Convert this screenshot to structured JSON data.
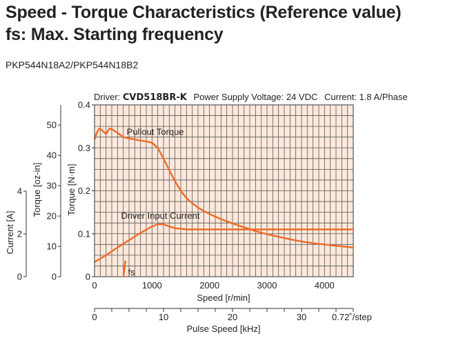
{
  "header": {
    "title_line1": "Speed - Torque Characteristics (Reference value)",
    "title_line2": "fs: Max. Starting frequency",
    "model": "PKP544N18A2/PKP544N18B2"
  },
  "conditions": {
    "driver_prefix": "Driver: ",
    "driver_name": "CVD518BR-K",
    "power_supply": "Power Supply Voltage: 24 VDC",
    "current": "Current: 1.8 A/Phase"
  },
  "colors": {
    "curve": "#ef6a24",
    "plot_background": "#fde9dc",
    "grid": "#555555"
  },
  "chart_data": {
    "type": "line",
    "x_axis": {
      "label": "Speed [r/min]",
      "range": [
        0,
        4500
      ],
      "ticks": [
        0,
        1000,
        2000,
        3000,
        4000
      ],
      "minor_step": 100
    },
    "pulse_axis": {
      "label": "Pulse Speed [kHz]",
      "range": [
        0,
        37.5
      ],
      "ticks": [
        0,
        10,
        20,
        30
      ],
      "end_label": "0.72˚/step"
    },
    "y_axis_torque_nm": {
      "label": "Torque [N·m]",
      "range": [
        0,
        0.4
      ],
      "ticks": [
        0,
        0.1,
        0.2,
        0.3,
        0.4
      ]
    },
    "y_axis_torque_ozin": {
      "label": "Torque [oz-in]",
      "range": [
        0,
        56.64
      ],
      "ticks": [
        0,
        10,
        20,
        30,
        40,
        50
      ]
    },
    "y_axis_current": {
      "label": "Current [A]",
      "range": [
        0,
        4
      ],
      "ticks": [
        0,
        2,
        4
      ]
    },
    "series": [
      {
        "name": "Pullout Torque",
        "x": [
          0,
          40,
          80,
          120,
          200,
          260,
          320,
          400,
          500,
          600,
          750,
          900,
          1000,
          1100,
          1200,
          1300,
          1400,
          1500,
          1600,
          1700,
          1800,
          1900,
          2000,
          2200,
          2400,
          2600,
          2800,
          3000,
          3200,
          3400,
          3600,
          3800,
          4000,
          4200,
          4500
        ],
        "y": [
          0.32,
          0.335,
          0.345,
          0.342,
          0.332,
          0.345,
          0.342,
          0.335,
          0.325,
          0.322,
          0.318,
          0.315,
          0.312,
          0.3,
          0.275,
          0.248,
          0.222,
          0.2,
          0.183,
          0.171,
          0.161,
          0.153,
          0.146,
          0.134,
          0.124,
          0.115,
          0.106,
          0.099,
          0.093,
          0.087,
          0.082,
          0.078,
          0.075,
          0.072,
          0.068
        ]
      },
      {
        "name": "Driver Input Current",
        "x": [
          0,
          200,
          400,
          600,
          800,
          1000,
          1100,
          1200,
          1300,
          1400,
          1600,
          2000,
          2500,
          3000,
          3500,
          4000,
          4500
        ],
        "y": [
          0.034,
          0.05,
          0.068,
          0.085,
          0.102,
          0.117,
          0.122,
          0.122,
          0.117,
          0.113,
          0.11,
          0.11,
          0.11,
          0.11,
          0.11,
          0.11,
          0.11
        ]
      }
    ],
    "annotations": [
      {
        "text": "Pullout Torque",
        "x": 560,
        "y": 0.33
      },
      {
        "text": "Driver Input Current",
        "x": 460,
        "y": 0.135
      },
      {
        "text": "fs",
        "x": 520,
        "y": 0.0
      }
    ],
    "fs_marker": {
      "x": 520,
      "y": 0.015
    }
  }
}
